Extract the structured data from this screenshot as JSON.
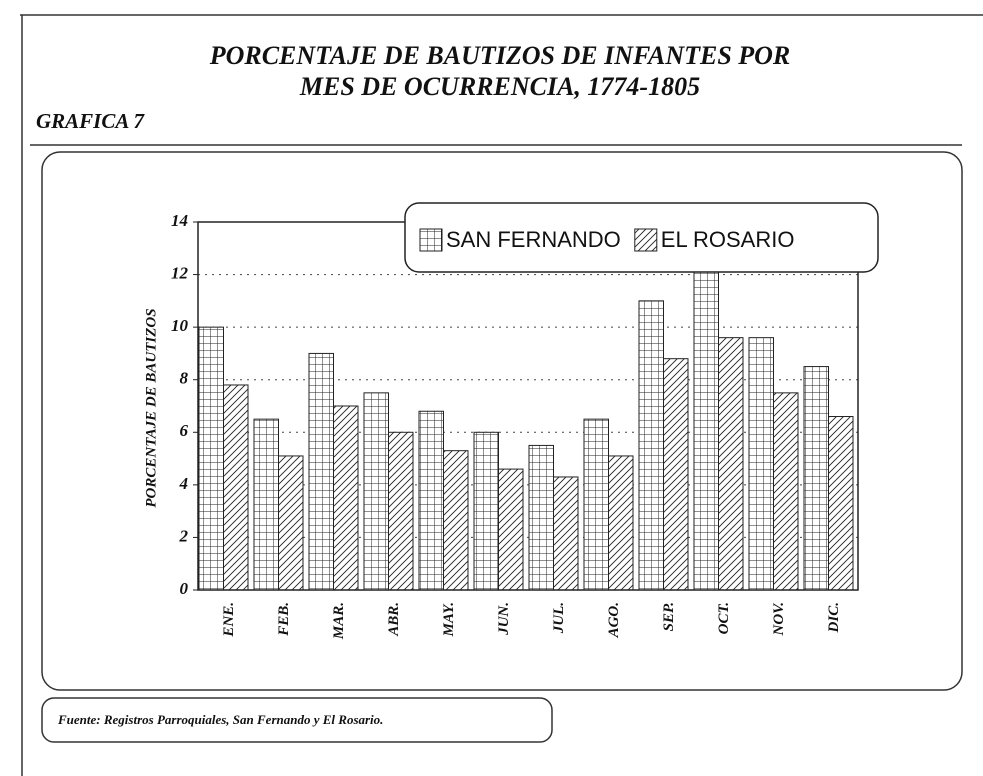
{
  "chart_data": {
    "type": "bar",
    "title": [
      "PORCENTAJE DE BAUTIZOS DE INFANTES POR",
      "MES DE OCURRENCIA, 1774-1805"
    ],
    "subtitle": "GRAFICA 7",
    "ylabel": "PORCENTAJE DE BAUTIZOS",
    "source": "Fuente: Registros Parroquiales, San Fernando y El Rosario.",
    "categories": [
      "ENE.",
      "FEB.",
      "MAR.",
      "ABR.",
      "MAY.",
      "JUN.",
      "JUL.",
      "AGO.",
      "SEP.",
      "OCT.",
      "NOV.",
      "DIC."
    ],
    "series": [
      {
        "name": "SAN FERNANDO",
        "color": "#222222",
        "pattern": "grid",
        "values": [
          10,
          6.5,
          9,
          7.5,
          6.8,
          6,
          5.5,
          6.5,
          11,
          12.2,
          9.6,
          8.5
        ]
      },
      {
        "name": "EL ROSARIO",
        "color": "#222222",
        "pattern": "hatch",
        "values": [
          7.8,
          5.1,
          7,
          6,
          5.3,
          4.6,
          4.3,
          5.1,
          8.8,
          9.6,
          7.5,
          6.6
        ]
      }
    ],
    "ylim": [
      0,
      14
    ],
    "yticks": [
      0,
      2,
      4,
      6,
      8,
      10,
      12,
      14
    ],
    "grid": true,
    "legend": "upper right"
  }
}
